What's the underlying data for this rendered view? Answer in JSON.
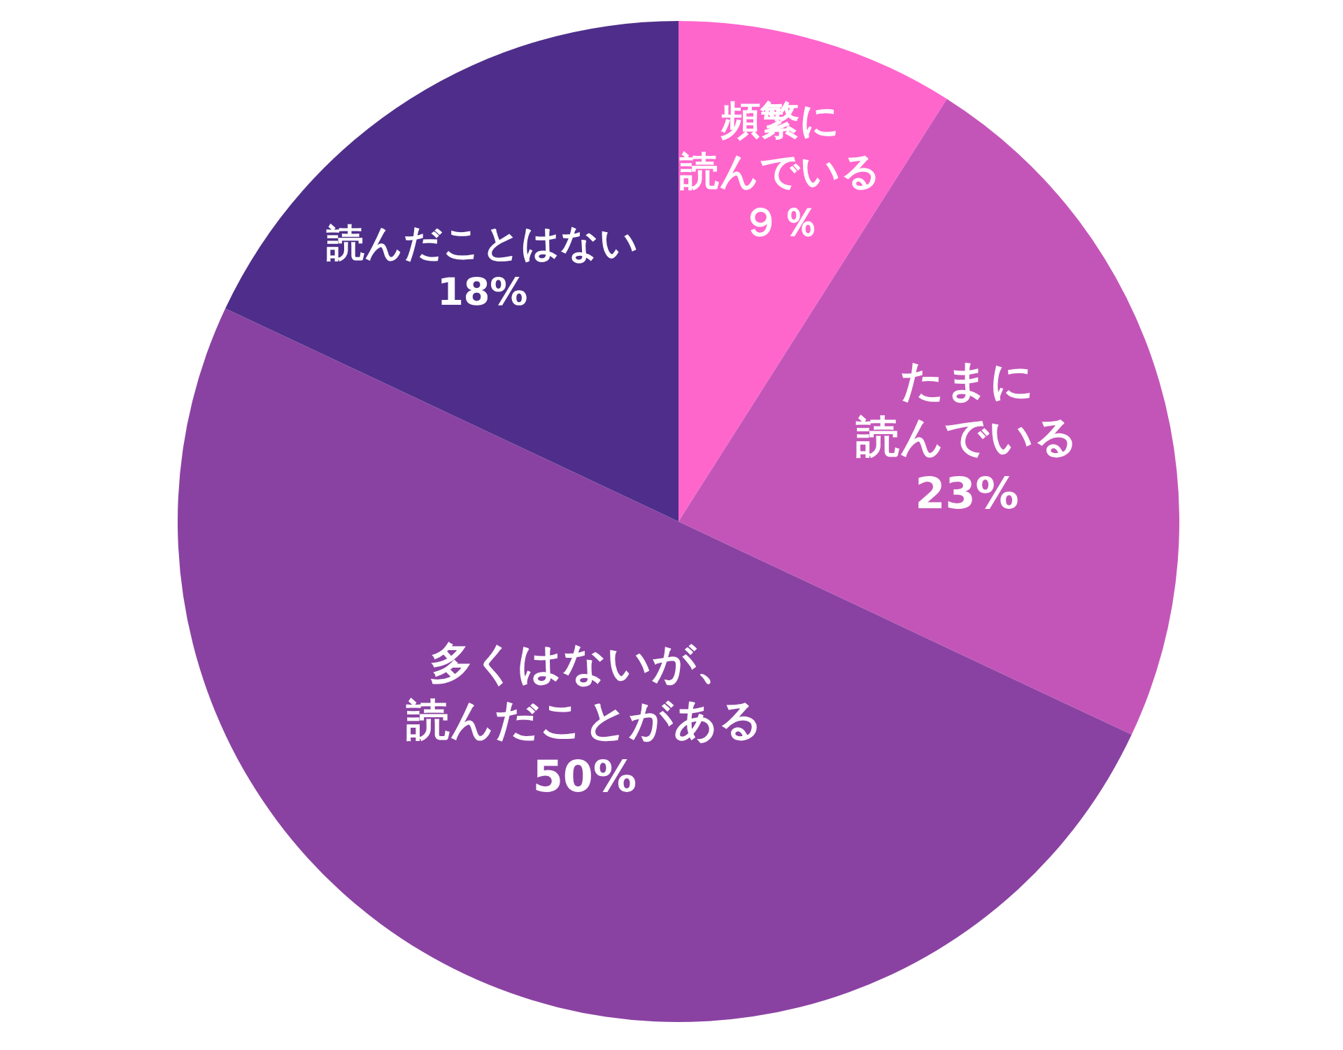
{
  "chart_data": {
    "type": "pie",
    "categories": [
      "頻繁に読んでいる",
      "たまに読んでいる",
      "多くはないが、読んだことがある",
      "読んだことはない"
    ],
    "values": [
      9,
      23,
      50,
      18
    ],
    "colors": [
      "#ff66cc",
      "#c455b8",
      "#8a42a2",
      "#4e2e8a"
    ],
    "value_labels": [
      "９％",
      "23%",
      "50%",
      "18%"
    ],
    "legend": false
  }
}
